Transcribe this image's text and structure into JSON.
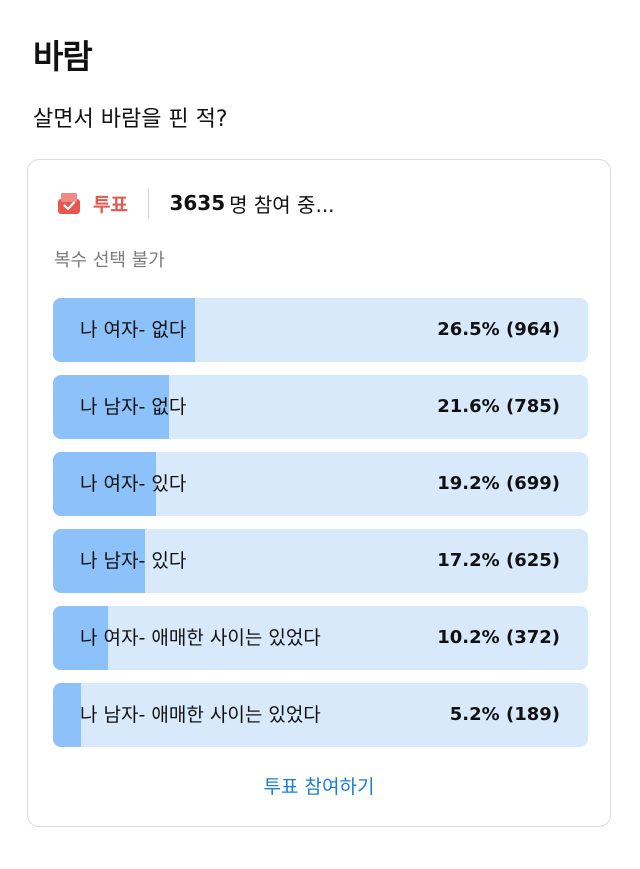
{
  "post": {
    "title": "바람",
    "body": "살면서 바람을 핀 적?"
  },
  "poll": {
    "tag_label": "투표",
    "participant_count": "3635",
    "participant_suffix": "명 참여 중...",
    "hint": "복수 선택 불가",
    "options": [
      {
        "label": "나 여자- 없다",
        "result": "26.5% (964)",
        "percent": 26.5
      },
      {
        "label": "나 남자- 없다",
        "result": "21.6% (785)",
        "percent": 21.6
      },
      {
        "label": "나 여자- 있다",
        "result": "19.2% (699)",
        "percent": 19.2
      },
      {
        "label": "나 남자- 있다",
        "result": "17.2% (625)",
        "percent": 17.2
      },
      {
        "label": "나 여자- 애매한 사이는 있었다",
        "result": "10.2% (372)",
        "percent": 10.2
      },
      {
        "label": "나 남자- 애매한 사이는 있었다",
        "result": "5.2% (189)",
        "percent": 5.2
      }
    ],
    "join_label": "투표 참여하기"
  },
  "icons": {
    "vote_icon": "ballot-box-icon"
  },
  "colors": {
    "accent_red": "#e8574e",
    "bar_track": "#d8e9fc",
    "bar_fill": "#8cc1fa",
    "link_blue": "#1a7fd4"
  }
}
